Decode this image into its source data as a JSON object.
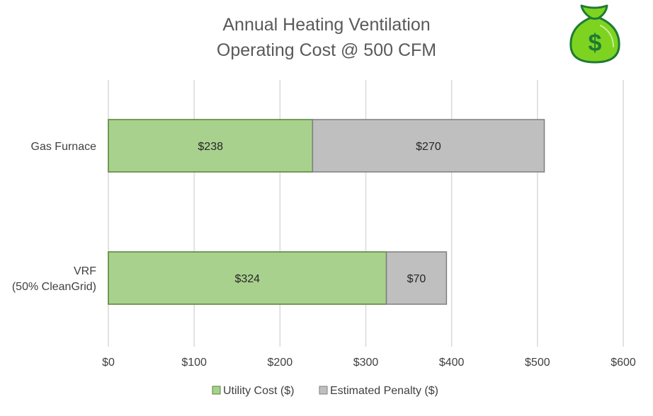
{
  "chart_data": {
    "type": "bar",
    "orientation": "horizontal",
    "stacked": true,
    "title": "Annual Heating Ventilation Operating Cost @ 500 CFM",
    "title_lines": [
      "Annual Heating Ventilation",
      "Operating Cost @ 500 CFM"
    ],
    "categories": [
      {
        "lines": [
          "Gas Furnace"
        ]
      },
      {
        "lines": [
          "VRF",
          "(50% CleanGrid)"
        ]
      }
    ],
    "series": [
      {
        "name": "Utility Cost ($)",
        "values": [
          238,
          324
        ],
        "labels": [
          "$238",
          "$324"
        ],
        "color": "#a9d18e",
        "border": "#548235"
      },
      {
        "name": "Estimated Penalty ($)",
        "values": [
          270,
          70
        ],
        "labels": [
          "$270",
          "$70"
        ],
        "color": "#bfbfbf",
        "border": "#7f7f7f"
      }
    ],
    "x_axis": {
      "min": 0,
      "max": 600,
      "ticks": [
        0,
        100,
        200,
        300,
        400,
        500,
        600
      ],
      "tick_labels": [
        "$0",
        "$100",
        "$200",
        "$300",
        "$400",
        "$500",
        "$600"
      ]
    },
    "grid": true,
    "legend_position": "bottom",
    "xlabel": "",
    "ylabel": ""
  },
  "icon": {
    "name": "money-bag-icon",
    "glyph": "$",
    "color": "#7ed321",
    "outline": "#1e7b34"
  }
}
